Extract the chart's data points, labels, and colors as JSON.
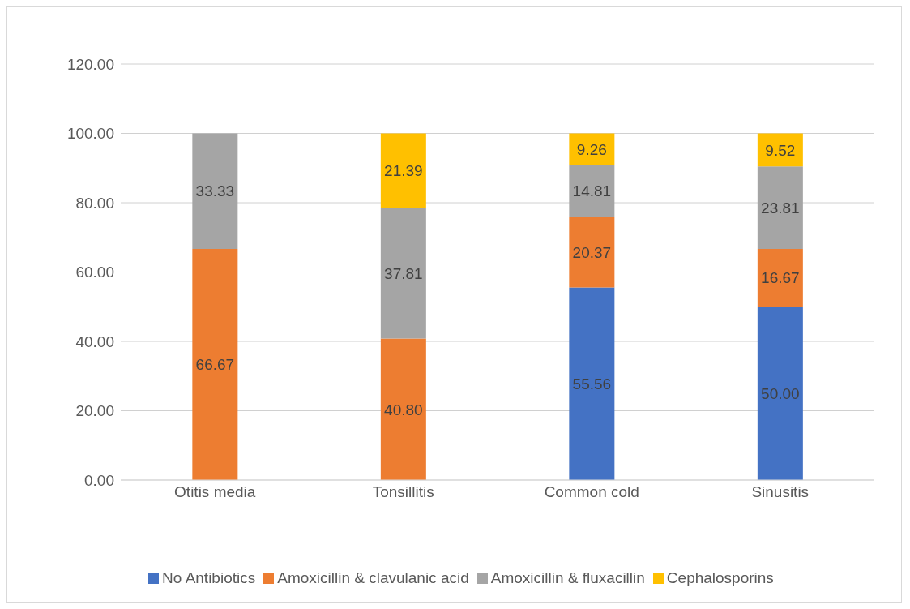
{
  "chart_data": {
    "type": "bar",
    "stacked": true,
    "categories": [
      "Otitis media",
      "Tonsillitis",
      "Common cold",
      "Sinusitis"
    ],
    "series": [
      {
        "name": "No Antibiotics",
        "color": "#4472c4",
        "values": [
          null,
          null,
          55.56,
          50.0
        ],
        "value_labels": [
          null,
          null,
          "55.56",
          "50.00"
        ]
      },
      {
        "name": "Amoxicillin & clavulanic acid",
        "color": "#ed7d31",
        "values": [
          66.67,
          40.8,
          20.37,
          16.67
        ],
        "value_labels": [
          "66.67",
          "40.80",
          "20.37",
          "16.67"
        ]
      },
      {
        "name": "Amoxicillin & fluxacillin",
        "color": "#a5a5a5",
        "values": [
          33.33,
          37.81,
          14.81,
          23.81
        ],
        "value_labels": [
          "33.33",
          "37.81",
          "14.81",
          "23.81"
        ]
      },
      {
        "name": "Cephalosporins",
        "color": "#ffc000",
        "values": [
          null,
          21.39,
          9.26,
          9.52
        ],
        "value_labels": [
          null,
          "21.39",
          "9.26",
          "9.52"
        ]
      }
    ],
    "ylim": [
      0,
      120
    ],
    "yticks": [
      {
        "value": 0,
        "label": "0.00"
      },
      {
        "value": 20,
        "label": "20.00"
      },
      {
        "value": 40,
        "label": "40.00"
      },
      {
        "value": 60,
        "label": "60.00"
      },
      {
        "value": 80,
        "label": "80.00"
      },
      {
        "value": 100,
        "label": "100.00"
      },
      {
        "value": 120,
        "label": "120.00"
      }
    ],
    "grid": "y",
    "legend": "bottom"
  }
}
